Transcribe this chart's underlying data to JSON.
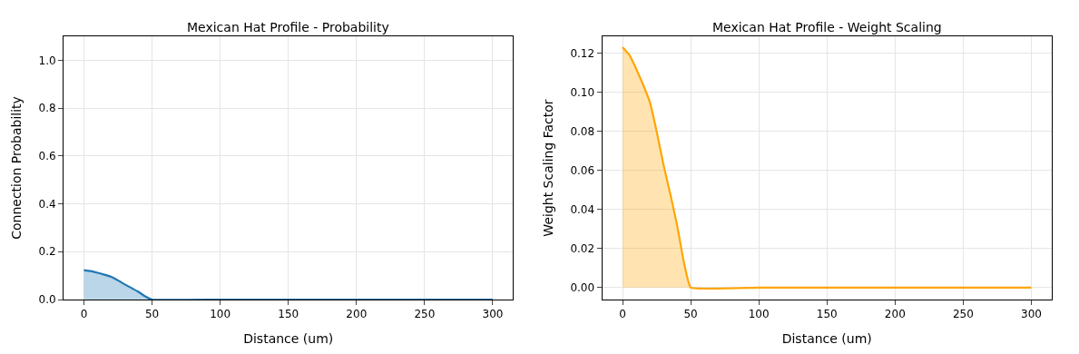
{
  "chart_data": [
    {
      "type": "area",
      "title": "Mexican Hat Profile - Probability",
      "xlabel": "Distance (um)",
      "ylabel": "Connection Probability",
      "x": [
        0,
        5,
        10,
        15,
        20,
        25,
        30,
        35,
        40,
        45,
        50,
        100,
        150,
        200,
        250,
        300
      ],
      "series": [
        {
          "color": "#1f77b4",
          "values": [
            0.123,
            0.119,
            0.112,
            0.104,
            0.095,
            0.08,
            0.063,
            0.048,
            0.032,
            0.013,
            0,
            0,
            0,
            0,
            0,
            0
          ]
        }
      ],
      "xlim": [
        -15,
        315
      ],
      "xticks": [
        0,
        50,
        100,
        150,
        200,
        250,
        300
      ],
      "ylim": [
        0,
        1.1
      ],
      "yticks": [
        {
          "value": 0,
          "label": "0.0"
        },
        {
          "value": 0.2,
          "label": "0.2"
        },
        {
          "value": 0.4,
          "label": "0.4"
        },
        {
          "value": 0.6,
          "label": "0.6"
        },
        {
          "value": 0.8,
          "label": "0.8"
        },
        {
          "value": 1,
          "label": "1.0"
        }
      ],
      "grid": true
    },
    {
      "type": "area",
      "title": "Mexican Hat Profile - Weight Scaling",
      "xlabel": "Distance (um)",
      "ylabel": "Weight Scaling Factor",
      "x": [
        0,
        5,
        10,
        15,
        20,
        25,
        30,
        35,
        40,
        45,
        50,
        100,
        150,
        200,
        250,
        300
      ],
      "series": [
        {
          "color": "#ffa500",
          "values": [
            0.123,
            0.119,
            0.112,
            0.104,
            0.095,
            0.08,
            0.063,
            0.048,
            0.032,
            0.013,
            0,
            0,
            0,
            0,
            0,
            0
          ]
        }
      ],
      "xlim": [
        -15,
        315
      ],
      "xticks": [
        0,
        50,
        100,
        150,
        200,
        250,
        300
      ],
      "ylim": [
        -0.0061,
        0.1286
      ],
      "yticks": [
        {
          "value": 0,
          "label": "0.00"
        },
        {
          "value": 0.02,
          "label": "0.02"
        },
        {
          "value": 0.04,
          "label": "0.04"
        },
        {
          "value": 0.06,
          "label": "0.06"
        },
        {
          "value": 0.08,
          "label": "0.08"
        },
        {
          "value": 0.1,
          "label": "0.10"
        },
        {
          "value": 0.12,
          "label": "0.12"
        }
      ],
      "grid": true
    }
  ]
}
